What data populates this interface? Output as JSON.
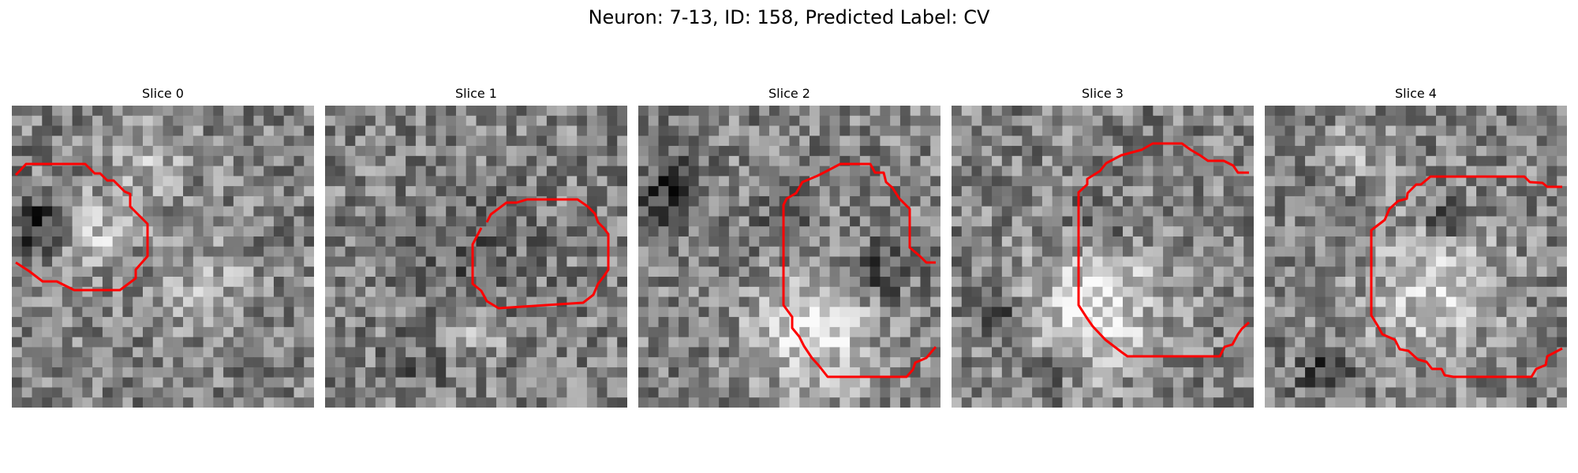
{
  "title": "Neuron: 7-13, ID: 158, Predicted Label: CV",
  "contour_color": "#ff0000",
  "colormap": "gray",
  "panels": [
    {
      "label": "Slice 0",
      "seed": 11,
      "pattern": "left-bright-blob"
    },
    {
      "label": "Slice 1",
      "seed": 23,
      "pattern": "noisy-center"
    },
    {
      "label": "Slice 2",
      "seed": 37,
      "pattern": "bright-lower-blob"
    },
    {
      "label": "Slice 3",
      "seed": 41,
      "pattern": "bright-lower-center"
    },
    {
      "label": "Slice 4",
      "seed": 53,
      "pattern": "bright-center-ring"
    }
  ]
}
